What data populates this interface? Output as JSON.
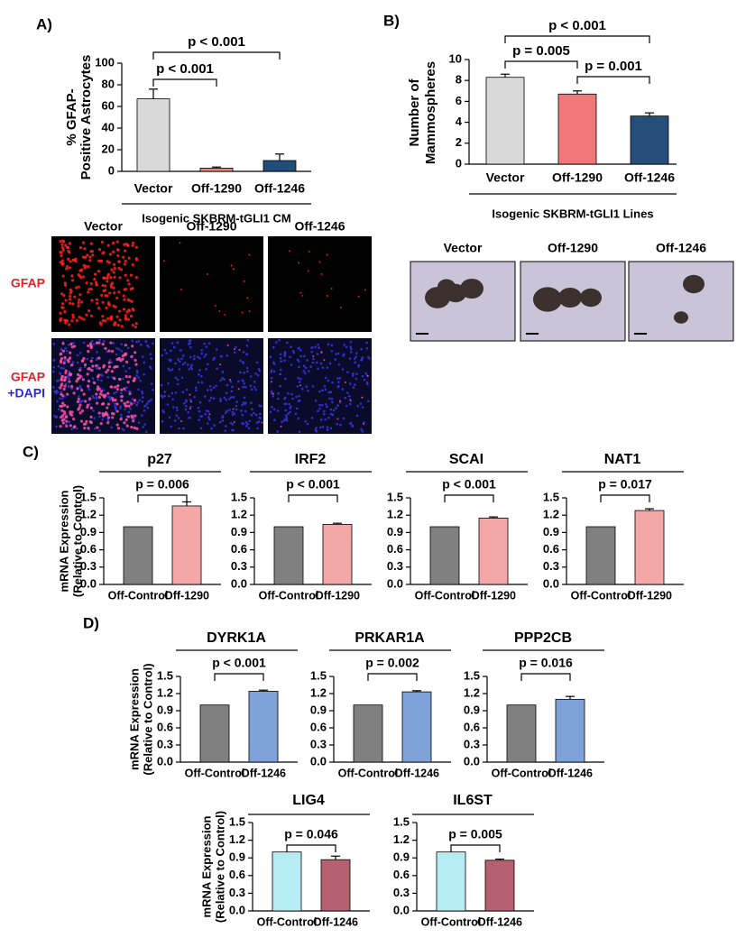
{
  "panel_labels": [
    "A)",
    "B)",
    "C)",
    "D)"
  ],
  "chart_data": [
    {
      "type": "bar",
      "ylabel": [
        "% GFAP-",
        "Positive Astrocytes"
      ],
      "categories": [
        "Vector",
        "Off-1290",
        "Off-1246"
      ],
      "values": [
        67,
        3,
        10
      ],
      "errors": [
        9,
        1,
        6
      ],
      "colors": [
        "#d9d9d9",
        "#f08080",
        "#1f4e79"
      ],
      "ylim": [
        0,
        100
      ],
      "yticks": [
        0,
        20,
        40,
        60,
        80,
        100
      ],
      "comparisons": [
        {
          "between": [
            "Vector",
            "Off-1290"
          ],
          "label": "p < 0.001"
        },
        {
          "between": [
            "Vector",
            "Off-1246"
          ],
          "label": "p < 0.001"
        }
      ],
      "group_label": "Isogenic SKBRM-tGLI1 CM"
    },
    {
      "type": "bar",
      "ylabel": [
        "Number of",
        "Mammospheres"
      ],
      "categories": [
        "Vector",
        "Off-1290",
        "Off-1246"
      ],
      "values": [
        8.3,
        6.7,
        4.6
      ],
      "errors": [
        0.3,
        0.3,
        0.3
      ],
      "colors": [
        "#d9d9d9",
        "#f07878",
        "#254e7a"
      ],
      "ylim": [
        0,
        10
      ],
      "yticks": [
        0,
        2,
        4,
        6,
        8,
        10
      ],
      "comparisons": [
        {
          "between": [
            "Vector",
            "Off-1290"
          ],
          "label": "p = 0.005"
        },
        {
          "between": [
            "Off-1290",
            "Off-1246"
          ],
          "label": "p = 0.001"
        },
        {
          "between": [
            "Vector",
            "Off-1246"
          ],
          "label": "p < 0.001"
        }
      ],
      "group_label": "Isogenic SKBRM-tGLI1 Lines"
    },
    {
      "type": "bar",
      "title": "p27",
      "ylabel": [
        "mRNA Expression",
        "(Relative to Control)"
      ],
      "categories": [
        "Off-Control",
        "Off-1290"
      ],
      "values": [
        1.0,
        1.36
      ],
      "errors": [
        null,
        0.07
      ],
      "colors": [
        "#808080",
        "#f4a7a7"
      ],
      "ylim": [
        0,
        1.5
      ],
      "yticks": [
        {
          "value": 0,
          "label": "0.0"
        },
        0.3,
        0.6,
        0.9,
        1.2,
        1.5
      ],
      "comparisons": [
        {
          "between": [
            "Off-Control",
            "Off-1290"
          ],
          "label": "p = 0.006"
        }
      ]
    },
    {
      "type": "bar",
      "title": "IRF2",
      "categories": [
        "Off-Control",
        "Off-1290"
      ],
      "values": [
        1.0,
        1.04
      ],
      "errors": [
        null,
        0.02
      ],
      "colors": [
        "#808080",
        "#f4a7a7"
      ],
      "ylim": [
        0,
        1.5
      ],
      "yticks": [
        {
          "value": 0,
          "label": "0.0"
        },
        0.3,
        0.6,
        0.9,
        1.2,
        1.5
      ],
      "comparisons": [
        {
          "between": [
            "Off-Control",
            "Off-1290"
          ],
          "label": "p < 0.001"
        }
      ]
    },
    {
      "type": "bar",
      "title": "SCAI",
      "categories": [
        "Off-Control",
        "Off-1290"
      ],
      "values": [
        1.0,
        1.15
      ],
      "errors": [
        null,
        0.02
      ],
      "colors": [
        "#808080",
        "#f4a7a7"
      ],
      "ylim": [
        0,
        1.5
      ],
      "yticks": [
        {
          "value": 0,
          "label": "0.0"
        },
        0.3,
        0.6,
        0.9,
        1.2,
        1.5
      ],
      "comparisons": [
        {
          "between": [
            "Off-Control",
            "Off-1290"
          ],
          "label": "p < 0.001"
        }
      ]
    },
    {
      "type": "bar",
      "title": "NAT1",
      "categories": [
        "Off-Control",
        "Off-1290"
      ],
      "values": [
        1.0,
        1.28
      ],
      "errors": [
        null,
        0.03
      ],
      "colors": [
        "#808080",
        "#f4a7a7"
      ],
      "ylim": [
        0,
        1.5
      ],
      "yticks": [
        {
          "value": 0,
          "label": "0.0"
        },
        0.3,
        0.6,
        0.9,
        1.2,
        1.5
      ],
      "comparisons": [
        {
          "between": [
            "Off-Control",
            "Off-1290"
          ],
          "label": "p = 0.017"
        }
      ]
    },
    {
      "type": "bar",
      "title": "DYRK1A",
      "ylabel": [
        "mRNA Expression",
        "(Relative to Control)"
      ],
      "categories": [
        "Off-Control",
        "Off-1246"
      ],
      "values": [
        1.0,
        1.24
      ],
      "errors": [
        null,
        0.02
      ],
      "colors": [
        "#808080",
        "#7fa3d9"
      ],
      "ylim": [
        0,
        1.5
      ],
      "yticks": [
        {
          "value": 0,
          "label": "0.0"
        },
        0.3,
        0.6,
        0.9,
        1.2,
        1.5
      ],
      "comparisons": [
        {
          "between": [
            "Off-Control",
            "Off-1246"
          ],
          "label": "p < 0.001"
        }
      ]
    },
    {
      "type": "bar",
      "title": "PRKAR1A",
      "categories": [
        "Off-Control",
        "Off-1246"
      ],
      "values": [
        1.0,
        1.23
      ],
      "errors": [
        null,
        0.02
      ],
      "colors": [
        "#808080",
        "#7fa3d9"
      ],
      "ylim": [
        0,
        1.5
      ],
      "yticks": [
        {
          "value": 0,
          "label": "0.0"
        },
        0.3,
        0.6,
        0.9,
        1.2,
        1.5
      ],
      "comparisons": [
        {
          "between": [
            "Off-Control",
            "Off-1246"
          ],
          "label": "p = 0.002"
        }
      ]
    },
    {
      "type": "bar",
      "title": "PPP2CB",
      "categories": [
        "Off-Control",
        "Off-1246"
      ],
      "values": [
        1.0,
        1.1
      ],
      "errors": [
        null,
        0.05
      ],
      "colors": [
        "#808080",
        "#7fa3d9"
      ],
      "ylim": [
        0,
        1.5
      ],
      "yticks": [
        {
          "value": 0,
          "label": "0.0"
        },
        0.3,
        0.6,
        0.9,
        1.2,
        1.5
      ],
      "comparisons": [
        {
          "between": [
            "Off-Control",
            "Off-1246"
          ],
          "label": "p = 0.016"
        }
      ]
    },
    {
      "type": "bar",
      "title": "LIG4",
      "ylabel": [
        "mRNA Expression",
        "(Relative to Control)"
      ],
      "categories": [
        "Off-Control",
        "Off-1246"
      ],
      "values": [
        1.0,
        0.87
      ],
      "errors": [
        null,
        0.06
      ],
      "colors": [
        "#b7ecf5",
        "#b4606e"
      ],
      "ylim": [
        0,
        1.5
      ],
      "yticks": [
        {
          "value": 0,
          "label": "0.0"
        },
        0.3,
        0.6,
        0.9,
        1.2,
        1.5
      ],
      "comparisons": [
        {
          "between": [
            "Off-Control",
            "Off-1246"
          ],
          "label": "p = 0.046"
        }
      ]
    },
    {
      "type": "bar",
      "title": "IL6ST",
      "categories": [
        "Off-Control",
        "Off-1246"
      ],
      "values": [
        1.0,
        0.86
      ],
      "errors": [
        null,
        0.02
      ],
      "colors": [
        "#b7ecf5",
        "#b4606e"
      ],
      "ylim": [
        0,
        1.5
      ],
      "yticks": [
        {
          "value": 0,
          "label": "0.0"
        },
        0.3,
        0.6,
        0.9,
        1.2,
        1.5
      ],
      "comparisons": [
        {
          "between": [
            "Off-Control",
            "Off-1246"
          ],
          "label": "p = 0.005"
        }
      ]
    }
  ],
  "micrographs": [
    {
      "columns": [
        "Vector",
        "Off-1290",
        "Off-1246"
      ],
      "rows": [
        [
          "GFAP"
        ],
        [
          "GFAP",
          "+DAPI"
        ]
      ]
    },
    {
      "columns": [
        "Vector",
        "Off-1290",
        "Off-1246"
      ]
    }
  ]
}
